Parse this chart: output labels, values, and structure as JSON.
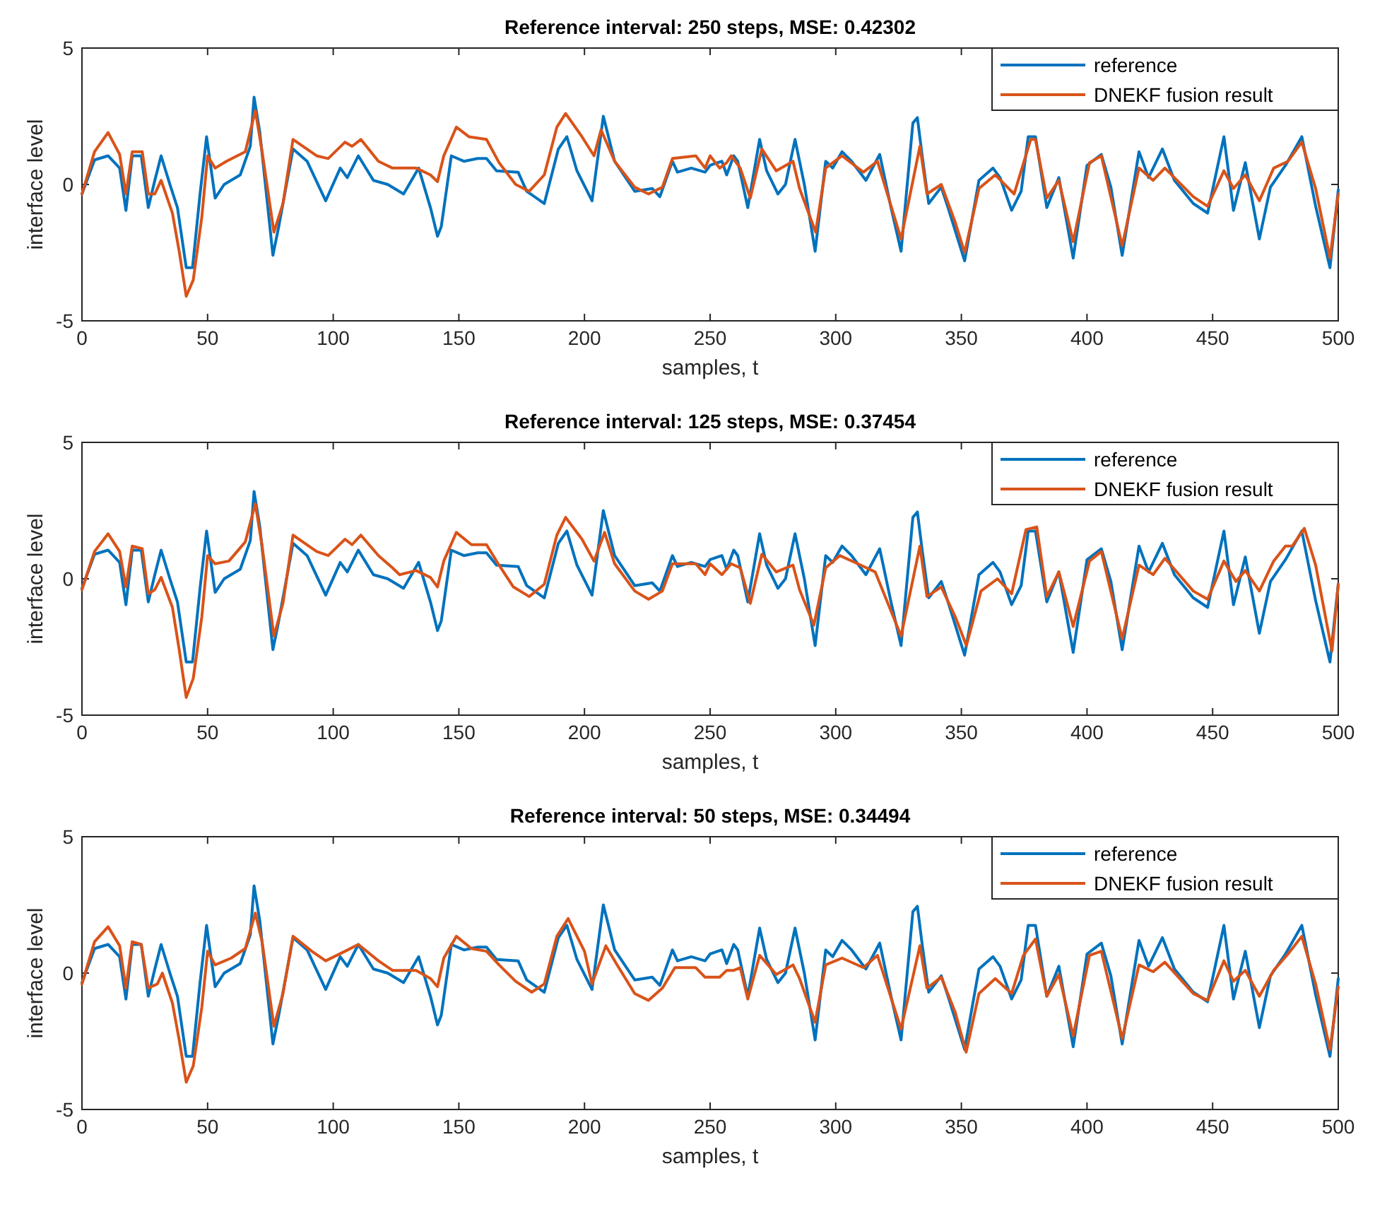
{
  "chart_data": [
    {
      "type": "line",
      "title": "Reference interval: 250 steps, MSE: 0.42302",
      "xlabel": "samples, t",
      "ylabel": "interface level",
      "xlim": [
        0,
        500
      ],
      "ylim": [
        -5,
        5
      ],
      "xticks": [
        0,
        50,
        100,
        150,
        200,
        250,
        300,
        350,
        400,
        450,
        500
      ],
      "yticks": [
        -5,
        0,
        5
      ],
      "grid": false,
      "legend": "top right",
      "marker": "none",
      "line_style": "solid",
      "series": [
        {
          "name": "reference",
          "color": "#0072bd",
          "x": [
            0,
            5,
            10.4,
            15,
            17.5,
            20,
            23.6,
            26.4,
            29,
            31.5,
            35,
            38,
            41.5,
            44,
            47,
            49.6,
            53,
            56.6,
            63,
            67,
            68.5,
            70.8,
            76,
            78.3,
            84,
            89.6,
            97,
            102.8,
            105.6,
            110,
            116,
            121.7,
            128,
            134,
            138.7,
            141.5,
            143,
            147,
            152,
            157.5,
            161,
            165,
            173.6,
            177,
            184,
            189.6,
            193,
            197,
            203,
            207.5,
            212,
            220,
            227,
            230,
            235,
            237,
            242.5,
            248,
            250,
            254.7,
            256.6,
            259.4,
            261,
            265,
            269.7,
            272.5,
            277,
            280,
            283.8,
            287.5,
            291.8,
            296,
            298.8,
            302.5,
            306.3,
            312,
            317.5,
            322,
            326,
            330.7,
            332.5,
            334.4,
            337,
            342,
            344.7,
            351.3,
            357,
            362.6,
            365.4,
            370,
            373.8,
            376.6,
            379.5,
            384,
            388.8,
            394.5,
            400,
            405.7,
            409.5,
            414,
            420.7,
            424.5,
            430,
            434.8,
            442.3,
            448,
            454.5,
            458.3,
            463,
            468.6,
            473,
            479,
            485.5,
            491,
            496.7,
            500
          ],
          "values": [
            -0.35,
            0.9,
            1.05,
            0.6,
            -0.95,
            1.05,
            1.05,
            -0.85,
            0.15,
            1.05,
            0,
            -0.85,
            -3.05,
            -3.05,
            -0.35,
            1.75,
            -0.5,
            0,
            0.35,
            1.4,
            3.2,
            1.9,
            -2.6,
            -1.55,
            1.3,
            0.85,
            -0.6,
            0.6,
            0.25,
            1.05,
            0.15,
            0,
            -0.35,
            0.6,
            -0.85,
            -1.9,
            -1.55,
            1.05,
            0.85,
            0.95,
            0.95,
            0.5,
            0.45,
            -0.25,
            -0.7,
            1.3,
            1.75,
            0.5,
            -0.6,
            2.5,
            0.85,
            -0.25,
            -0.15,
            -0.45,
            0.85,
            0.45,
            0.6,
            0.45,
            0.7,
            0.85,
            0.35,
            1.05,
            0.85,
            -0.85,
            1.65,
            0.5,
            -0.35,
            0,
            1.65,
            0,
            -2.45,
            0.85,
            0.6,
            1.2,
            0.85,
            0.15,
            1.1,
            -0.85,
            -2.45,
            2.25,
            2.45,
            1.05,
            -0.7,
            -0.1,
            -0.85,
            -2.8,
            0.15,
            0.6,
            0.25,
            -0.95,
            -0.25,
            1.75,
            1.75,
            -0.85,
            0.25,
            -2.7,
            0.7,
            1.1,
            -0.1,
            -2.6,
            1.2,
            0.25,
            1.3,
            0.15,
            -0.7,
            -1.05,
            1.75,
            -0.95,
            0.8,
            -2.0,
            -0.1,
            0.7,
            1.75,
            -0.8,
            -3.05,
            -0.2
          ]
        },
        {
          "name": "DNEKF fusion result",
          "color": "#d95319",
          "x": [
            0,
            5,
            10.4,
            15,
            17.5,
            20,
            24,
            26.4,
            29,
            31.5,
            36,
            38.7,
            41.5,
            44.3,
            47.7,
            50,
            53,
            57.5,
            65,
            69,
            71.7,
            76.4,
            80,
            84,
            93.4,
            98,
            104.7,
            107.5,
            111,
            118,
            123.6,
            133,
            138.7,
            141.5,
            144,
            149,
            154,
            161,
            166,
            172.6,
            178,
            184,
            189,
            192.5,
            199,
            203.8,
            206.6,
            212,
            220,
            225.5,
            231,
            235,
            244.3,
            248,
            250,
            253.8,
            256.6,
            258.4,
            262,
            266,
            270.6,
            276.3,
            283,
            285.6,
            292,
            296,
            302.5,
            311,
            316.6,
            326,
            333.5,
            336.3,
            342,
            347.6,
            351.3,
            357,
            363.5,
            371,
            377.6,
            379.5,
            384,
            388.8,
            394.5,
            401,
            405.7,
            414,
            420.7,
            426.3,
            431,
            442.3,
            448,
            454.5,
            458.3,
            463,
            468.6,
            474.3,
            480,
            485.5,
            491,
            496.7,
            500
          ],
          "values": [
            -0.35,
            1.2,
            1.9,
            1.1,
            -0.35,
            1.2,
            1.2,
            -0.35,
            -0.35,
            0.15,
            -1.05,
            -2.45,
            -4.1,
            -3.5,
            -1.2,
            1.05,
            0.6,
            0.85,
            1.2,
            2.7,
            1.2,
            -1.75,
            -0.7,
            1.65,
            1.05,
            0.95,
            1.55,
            1.4,
            1.65,
            0.85,
            0.6,
            0.6,
            0.35,
            0.1,
            1.05,
            2.1,
            1.75,
            1.65,
            0.8,
            0,
            -0.25,
            0.35,
            2.1,
            2.6,
            1.75,
            1.05,
            2.0,
            0.85,
            -0.1,
            -0.35,
            -0.1,
            0.95,
            1.05,
            0.6,
            1.05,
            0.6,
            0.8,
            1.05,
            0.6,
            -0.5,
            1.3,
            0.5,
            0.85,
            -0.15,
            -1.75,
            0.6,
            1.05,
            0.45,
            0.85,
            -2.0,
            1.4,
            -0.35,
            0,
            -1.4,
            -2.5,
            -0.15,
            0.35,
            -0.35,
            1.65,
            1.65,
            -0.5,
            0.15,
            -2.1,
            0.8,
            1.05,
            -2.25,
            0.6,
            0.15,
            0.6,
            -0.45,
            -0.8,
            0.5,
            -0.15,
            0.35,
            -0.6,
            0.6,
            0.85,
            1.55,
            -0.15,
            -2.7,
            -0.35
          ]
        }
      ]
    },
    {
      "type": "line",
      "title": "Reference interval: 125 steps, MSE: 0.37454",
      "xlabel": "samples, t",
      "ylabel": "interface level",
      "xlim": [
        0,
        500
      ],
      "ylim": [
        -5,
        5
      ],
      "xticks": [
        0,
        50,
        100,
        150,
        200,
        250,
        300,
        350,
        400,
        450,
        500
      ],
      "yticks": [
        -5,
        0,
        5
      ],
      "grid": false,
      "legend": "top right",
      "marker": "none",
      "line_style": "solid",
      "series": [
        {
          "name": "reference",
          "color": "#0072bd",
          "x": [
            0,
            5,
            10.4,
            15,
            17.5,
            20,
            23.6,
            26.4,
            29,
            31.5,
            35,
            38,
            41.5,
            44,
            47,
            49.6,
            53,
            56.6,
            63,
            67,
            68.5,
            70.8,
            76,
            78.3,
            84,
            89.6,
            97,
            102.8,
            105.6,
            110,
            116,
            121.7,
            128,
            134,
            138.7,
            141.5,
            143,
            147,
            152,
            157.5,
            161,
            165,
            173.6,
            177,
            184,
            189.6,
            193,
            197,
            203,
            207.5,
            212,
            220,
            227,
            230,
            235,
            237,
            242.5,
            248,
            250,
            254.7,
            256.6,
            259.4,
            261,
            265,
            269.7,
            272.5,
            277,
            280,
            283.8,
            287.5,
            291.8,
            296,
            298.8,
            302.5,
            306.3,
            312,
            317.5,
            322,
            326,
            330.7,
            332.5,
            334.4,
            337,
            342,
            344.7,
            351.3,
            357,
            362.6,
            365.4,
            370,
            373.8,
            376.6,
            379.5,
            384,
            388.8,
            394.5,
            400,
            405.7,
            409.5,
            414,
            420.7,
            424.5,
            430,
            434.8,
            442.3,
            448,
            454.5,
            458.3,
            463,
            468.6,
            473,
            479,
            485.5,
            491,
            496.7,
            500
          ],
          "values": [
            -0.35,
            0.9,
            1.05,
            0.6,
            -0.95,
            1.05,
            1.05,
            -0.85,
            0.15,
            1.05,
            0,
            -0.85,
            -3.05,
            -3.05,
            -0.35,
            1.75,
            -0.5,
            0,
            0.35,
            1.4,
            3.2,
            1.9,
            -2.6,
            -1.55,
            1.3,
            0.85,
            -0.6,
            0.6,
            0.25,
            1.05,
            0.15,
            0,
            -0.35,
            0.6,
            -0.85,
            -1.9,
            -1.55,
            1.05,
            0.85,
            0.95,
            0.95,
            0.5,
            0.45,
            -0.25,
            -0.7,
            1.3,
            1.75,
            0.5,
            -0.6,
            2.5,
            0.85,
            -0.25,
            -0.15,
            -0.45,
            0.85,
            0.45,
            0.6,
            0.45,
            0.7,
            0.85,
            0.35,
            1.05,
            0.85,
            -0.85,
            1.65,
            0.5,
            -0.35,
            0,
            1.65,
            0,
            -2.45,
            0.85,
            0.6,
            1.2,
            0.85,
            0.15,
            1.1,
            -0.85,
            -2.45,
            2.25,
            2.45,
            1.05,
            -0.7,
            -0.1,
            -0.85,
            -2.8,
            0.15,
            0.6,
            0.25,
            -0.95,
            -0.25,
            1.75,
            1.75,
            -0.85,
            0.25,
            -2.7,
            0.7,
            1.1,
            -0.1,
            -2.6,
            1.2,
            0.25,
            1.3,
            0.15,
            -0.7,
            -1.05,
            1.75,
            -0.95,
            0.8,
            -2.0,
            -0.1,
            0.7,
            1.75,
            -0.8,
            -3.05,
            -0.2
          ]
        },
        {
          "name": "DNEKF fusion result",
          "color": "#d95319",
          "x": [
            0,
            5,
            10.4,
            15,
            17.5,
            20,
            24,
            26.4,
            29,
            31.5,
            36,
            38.7,
            41.5,
            44.3,
            47.7,
            50,
            53,
            58.5,
            65,
            69,
            71.7,
            76.4,
            80,
            84,
            93.4,
            98,
            104.7,
            107.5,
            111,
            118,
            123.6,
            126.4,
            133,
            138.7,
            141.5,
            144,
            149,
            155,
            161,
            166,
            171.7,
            178,
            184,
            189,
            192.5,
            199,
            203.8,
            208,
            212,
            220,
            225.5,
            231,
            235,
            244.3,
            248,
            250,
            254.7,
            258.4,
            262,
            266,
            270.6,
            276.3,
            283,
            285.6,
            291.3,
            296,
            301.6,
            310,
            315.7,
            326,
            333.5,
            336.3,
            342,
            347.6,
            352,
            357.8,
            364.4,
            370,
            375.7,
            380,
            384,
            388.8,
            394.5,
            401,
            405.7,
            414,
            420.7,
            426.3,
            431,
            442.3,
            448,
            454.5,
            459.3,
            463,
            468.6,
            474.3,
            479,
            481.7,
            486.5,
            491,
            497.5,
            500
          ],
          "values": [
            -0.4,
            1.0,
            1.65,
            1.0,
            -0.3,
            1.2,
            1.1,
            -0.55,
            -0.4,
            0.05,
            -1.05,
            -2.6,
            -4.35,
            -3.65,
            -1.4,
            0.85,
            0.55,
            0.65,
            1.35,
            2.75,
            1.2,
            -2.1,
            -0.9,
            1.6,
            1.0,
            0.85,
            1.45,
            1.25,
            1.6,
            0.85,
            0.4,
            0.15,
            0.3,
            0.05,
            -0.3,
            0.65,
            1.7,
            1.25,
            1.25,
            0.5,
            -0.3,
            -0.65,
            -0.2,
            1.6,
            2.25,
            1.45,
            0.65,
            1.7,
            0.55,
            -0.45,
            -0.75,
            -0.45,
            0.55,
            0.55,
            0.15,
            0.55,
            0.15,
            0.55,
            0.4,
            -0.9,
            0.9,
            0.25,
            0.5,
            -0.4,
            -1.7,
            0.4,
            0.85,
            0.5,
            0.25,
            -2.1,
            1.2,
            -0.65,
            -0.3,
            -1.4,
            -2.45,
            -0.45,
            0,
            -0.55,
            1.8,
            1.9,
            -0.65,
            0.25,
            -1.75,
            0.65,
            1.0,
            -2.2,
            0.5,
            0.15,
            0.75,
            -0.45,
            -0.75,
            0.65,
            -0.1,
            0.3,
            -0.45,
            0.65,
            1.2,
            1.2,
            1.85,
            0.5,
            -2.65,
            -0.2
          ]
        }
      ]
    },
    {
      "type": "line",
      "title": "Reference interval: 50 steps, MSE: 0.34494",
      "xlabel": "samples, t",
      "ylabel": "interface level",
      "xlim": [
        0,
        500
      ],
      "ylim": [
        -5,
        5
      ],
      "xticks": [
        0,
        50,
        100,
        150,
        200,
        250,
        300,
        350,
        400,
        450,
        500
      ],
      "yticks": [
        -5,
        0,
        5
      ],
      "grid": false,
      "legend": "top right",
      "marker": "none",
      "line_style": "solid",
      "series": [
        {
          "name": "reference",
          "color": "#0072bd",
          "x": [
            0,
            5,
            10.4,
            15,
            17.5,
            20,
            23.6,
            26.4,
            29,
            31.5,
            35,
            38,
            41.5,
            44,
            47,
            49.6,
            53,
            56.6,
            63,
            67,
            68.5,
            70.8,
            76,
            78.3,
            84,
            89.6,
            97,
            102.8,
            105.6,
            110,
            116,
            121.7,
            128,
            134,
            138.7,
            141.5,
            143,
            147,
            152,
            157.5,
            161,
            165,
            173.6,
            177,
            184,
            189.6,
            193,
            197,
            203,
            207.5,
            212,
            220,
            227,
            230,
            235,
            237,
            242.5,
            248,
            250,
            254.7,
            256.6,
            259.4,
            261,
            265,
            269.7,
            272.5,
            277,
            280,
            283.8,
            287.5,
            291.8,
            296,
            298.8,
            302.5,
            306.3,
            312,
            317.5,
            322,
            326,
            330.7,
            332.5,
            334.4,
            337,
            342,
            344.7,
            351.3,
            357,
            362.6,
            365.4,
            370,
            373.8,
            376.6,
            379.5,
            384,
            388.8,
            394.5,
            400,
            405.7,
            409.5,
            414,
            420.7,
            424.5,
            430,
            434.8,
            442.3,
            448,
            454.5,
            458.3,
            463,
            468.6,
            473,
            479,
            485.5,
            491,
            496.7,
            500
          ],
          "values": [
            -0.35,
            0.9,
            1.05,
            0.6,
            -0.95,
            1.05,
            1.05,
            -0.85,
            0.15,
            1.05,
            0,
            -0.85,
            -3.05,
            -3.05,
            -0.35,
            1.75,
            -0.5,
            0,
            0.35,
            1.4,
            3.2,
            1.9,
            -2.6,
            -1.55,
            1.3,
            0.85,
            -0.6,
            0.6,
            0.25,
            1.05,
            0.15,
            0,
            -0.35,
            0.6,
            -0.85,
            -1.9,
            -1.55,
            1.05,
            0.85,
            0.95,
            0.95,
            0.5,
            0.45,
            -0.25,
            -0.7,
            1.3,
            1.75,
            0.5,
            -0.6,
            2.5,
            0.85,
            -0.25,
            -0.15,
            -0.45,
            0.85,
            0.45,
            0.6,
            0.45,
            0.7,
            0.85,
            0.35,
            1.05,
            0.85,
            -0.85,
            1.65,
            0.5,
            -0.35,
            0,
            1.65,
            0,
            -2.45,
            0.85,
            0.6,
            1.2,
            0.85,
            0.15,
            1.1,
            -0.85,
            -2.45,
            2.25,
            2.45,
            1.05,
            -0.7,
            -0.1,
            -0.85,
            -2.8,
            0.15,
            0.6,
            0.25,
            -0.95,
            -0.25,
            1.75,
            1.75,
            -0.85,
            0.25,
            -2.7,
            0.7,
            1.1,
            -0.1,
            -2.6,
            1.2,
            0.25,
            1.3,
            0.15,
            -0.7,
            -1.05,
            1.75,
            -0.95,
            0.8,
            -2.0,
            -0.1,
            0.7,
            1.75,
            -0.8,
            -3.05,
            -0.2
          ]
        },
        {
          "name": "DNEKF fusion result",
          "color": "#d95319",
          "x": [
            0,
            5,
            10.4,
            15,
            17.5,
            20,
            23.6,
            26.4,
            30,
            32,
            36,
            38.7,
            41.5,
            44.3,
            47.7,
            50,
            53,
            59.4,
            65,
            69,
            71.7,
            76.4,
            80,
            84,
            91.5,
            97,
            104.7,
            110,
            118,
            123.6,
            133,
            138.7,
            141.5,
            144,
            149,
            155,
            161,
            166,
            172.6,
            179,
            184,
            189,
            193.5,
            200,
            203,
            208.5,
            213,
            220,
            225.5,
            231,
            236,
            244.3,
            248,
            250,
            253.8,
            256.6,
            259.4,
            262,
            265,
            269.7,
            276.3,
            283,
            285.6,
            291.8,
            296,
            302.5,
            311,
            316.6,
            326,
            333.5,
            336.3,
            342,
            347.6,
            351.9,
            357,
            363.5,
            370,
            374.7,
            379.5,
            384,
            388.8,
            394.5,
            401,
            405.7,
            414,
            420.7,
            426.3,
            431,
            442.3,
            448,
            454.5,
            458.3,
            463,
            468.6,
            474.3,
            480,
            485.5,
            491,
            496.7,
            500
          ],
          "values": [
            -0.4,
            1.15,
            1.7,
            1.0,
            -0.55,
            1.15,
            1.05,
            -0.55,
            -0.4,
            0,
            -1.1,
            -2.45,
            -4.0,
            -3.4,
            -1.25,
            0.8,
            0.3,
            0.55,
            0.9,
            2.2,
            1.15,
            -1.95,
            -0.75,
            1.35,
            0.8,
            0.45,
            0.8,
            1.05,
            0.45,
            0.1,
            0.1,
            -0.2,
            -0.5,
            0.55,
            1.35,
            0.9,
            0.8,
            0.3,
            -0.3,
            -0.7,
            -0.4,
            1.35,
            2.0,
            0.8,
            -0.4,
            1.0,
            0.3,
            -0.75,
            -1.0,
            -0.55,
            0.2,
            0.2,
            -0.15,
            -0.15,
            -0.15,
            0.1,
            0.1,
            0.2,
            -0.95,
            0.65,
            -0.05,
            0.3,
            -0.2,
            -1.8,
            0.3,
            0.55,
            0.2,
            0.65,
            -2.05,
            1.0,
            -0.55,
            -0.15,
            -1.45,
            -2.9,
            -0.75,
            -0.2,
            -0.75,
            0.65,
            1.25,
            -0.85,
            -0.05,
            -2.3,
            0.65,
            0.8,
            -2.4,
            0.3,
            0.05,
            0.4,
            -0.75,
            -1.0,
            0.45,
            -0.3,
            0.1,
            -0.85,
            0.1,
            0.7,
            1.35,
            -0.4,
            -2.8,
            -0.5
          ]
        }
      ]
    }
  ]
}
